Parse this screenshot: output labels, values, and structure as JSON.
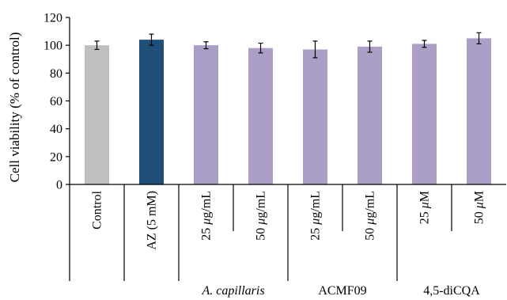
{
  "chart_data": {
    "type": "bar",
    "ylabel": "Cell viability (% of control)",
    "ylim": [
      0,
      120
    ],
    "yticks": [
      0,
      20,
      40,
      60,
      80,
      100,
      120
    ],
    "grid": false,
    "categories": [
      {
        "pre": "Control",
        "unit": "",
        "post": ""
      },
      {
        "pre": "AZ (5 mM)",
        "unit": "",
        "post": ""
      },
      {
        "pre": "25 ",
        "unit": "μ",
        "post": "g/mL"
      },
      {
        "pre": "50 ",
        "unit": "μ",
        "post": "g/mL"
      },
      {
        "pre": "25 ",
        "unit": "μ",
        "post": "g/mL"
      },
      {
        "pre": "50 ",
        "unit": "μ",
        "post": "g/mL"
      },
      {
        "pre": "25 ",
        "unit": "μ",
        "post": "M"
      },
      {
        "pre": "50 ",
        "unit": "μ",
        "post": "M"
      }
    ],
    "values": [
      100,
      104,
      100,
      98,
      97,
      99,
      101,
      105
    ],
    "errors": [
      3,
      4,
      2.5,
      3.5,
      6,
      4,
      2.5,
      4
    ],
    "colors": [
      "#bfbfbf",
      "#1f4e79",
      "#ab9fc7",
      "#ab9fc7",
      "#ab9fc7",
      "#ab9fc7",
      "#ab9fc7",
      "#ab9fc7"
    ],
    "groups": [
      {
        "label": "A. capillaris",
        "italic": true,
        "members": [
          2,
          3
        ]
      },
      {
        "label": "ACMF09",
        "italic": false,
        "members": [
          4,
          5
        ]
      },
      {
        "label": "4,5-diCQA",
        "italic": false,
        "members": [
          6,
          7
        ]
      }
    ]
  }
}
